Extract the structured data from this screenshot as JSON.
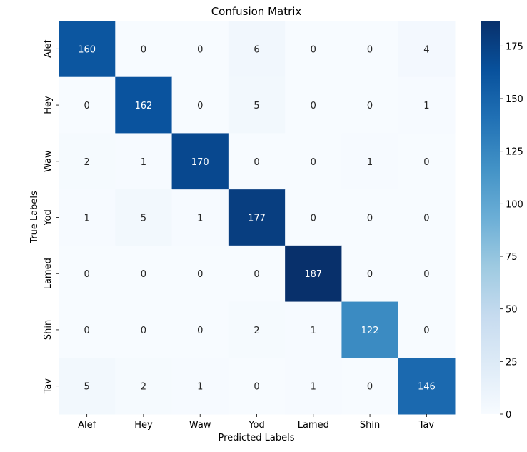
{
  "chart_data": {
    "type": "heatmap",
    "title": "Confusion Matrix",
    "xlabel": "Predicted Labels",
    "ylabel": "True Labels",
    "x_categories": [
      "Alef",
      "Hey",
      "Waw",
      "Yod",
      "Lamed",
      "Shin",
      "Tav"
    ],
    "y_categories": [
      "Alef",
      "Hey",
      "Waw",
      "Yod",
      "Lamed",
      "Shin",
      "Tav"
    ],
    "values": [
      [
        160,
        0,
        0,
        6,
        0,
        0,
        4
      ],
      [
        0,
        162,
        0,
        5,
        0,
        0,
        1
      ],
      [
        2,
        1,
        170,
        0,
        0,
        1,
        0
      ],
      [
        1,
        5,
        1,
        177,
        0,
        0,
        0
      ],
      [
        0,
        0,
        0,
        0,
        187,
        0,
        0
      ],
      [
        0,
        0,
        0,
        2,
        1,
        122,
        0
      ],
      [
        5,
        2,
        1,
        0,
        1,
        0,
        146
      ]
    ],
    "colorscale": "Blues",
    "color_min": "#f7fbff",
    "color_max": "#08306b",
    "value_range": [
      0,
      187
    ],
    "colorbar_ticks": [
      0,
      25,
      50,
      75,
      100,
      125,
      150,
      175
    ]
  }
}
